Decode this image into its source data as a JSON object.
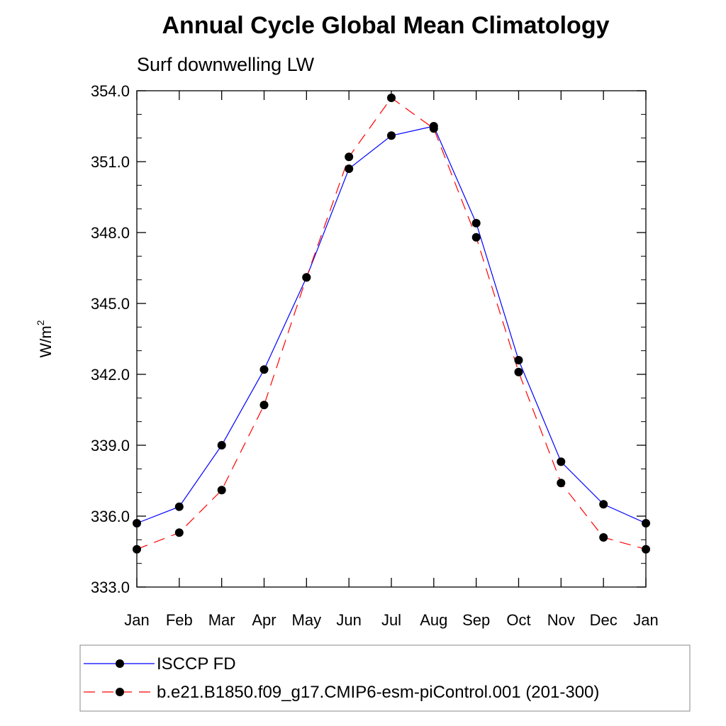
{
  "chart_data": {
    "type": "line",
    "title": "Annual Cycle Global Mean Climatology",
    "subtitle": "Surf downwelling LW",
    "ylabel": "W/m",
    "ylabel_sup": "2",
    "xlabel": "",
    "categories": [
      "Jan",
      "Feb",
      "Mar",
      "Apr",
      "May",
      "Jun",
      "Jul",
      "Aug",
      "Sep",
      "Oct",
      "Nov",
      "Dec",
      "Jan"
    ],
    "ylim": [
      333.0,
      354.0
    ],
    "yticks": [
      333.0,
      336.0,
      339.0,
      342.0,
      345.0,
      348.0,
      351.0,
      354.0
    ],
    "ytick_labels": [
      "333.0",
      "336.0",
      "339.0",
      "342.0",
      "345.0",
      "348.0",
      "351.0",
      "354.0"
    ],
    "y_minor_step": 1.0,
    "series": [
      {
        "name": "ISCCP FD",
        "color": "#0000ff",
        "dash": "solid",
        "values": [
          335.7,
          336.4,
          339.0,
          342.2,
          346.1,
          350.7,
          352.1,
          352.5,
          348.4,
          342.6,
          338.3,
          336.5,
          335.7
        ]
      },
      {
        "name": "b.e21.B1850.f09_g17.CMIP6-esm-piControl.001 (201-300)",
        "color": "#ff0000",
        "dash": "dashed",
        "values": [
          334.6,
          335.3,
          337.1,
          340.7,
          346.1,
          351.2,
          353.7,
          352.4,
          347.8,
          342.1,
          337.4,
          335.1,
          334.6
        ]
      }
    ],
    "legend_position": "bottom"
  }
}
